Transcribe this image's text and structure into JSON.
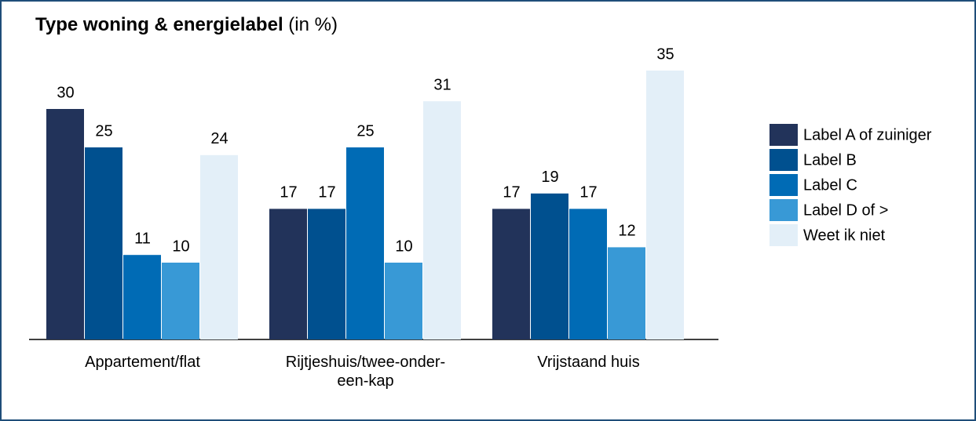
{
  "chart_data": {
    "type": "bar",
    "title": "Type woning & energielabel",
    "unit": "(in %)",
    "categories": [
      "Appartement/flat",
      "Rijtjeshuis/twee-onder-een-kap",
      "Vrijstaand huis"
    ],
    "series": [
      {
        "name": "Label A of zuiniger",
        "color": "#22335a",
        "values": [
          30,
          17,
          17
        ]
      },
      {
        "name": "Label B",
        "color": "#00508f",
        "values": [
          25,
          17,
          19
        ]
      },
      {
        "name": "Label C",
        "color": "#006bb5",
        "values": [
          11,
          25,
          17
        ]
      },
      {
        "name": "Label D of >",
        "color": "#3899d6",
        "values": [
          10,
          10,
          12
        ]
      },
      {
        "name": "Weet ik niet",
        "color": "#e3eff8",
        "values": [
          24,
          31,
          35
        ]
      }
    ]
  }
}
